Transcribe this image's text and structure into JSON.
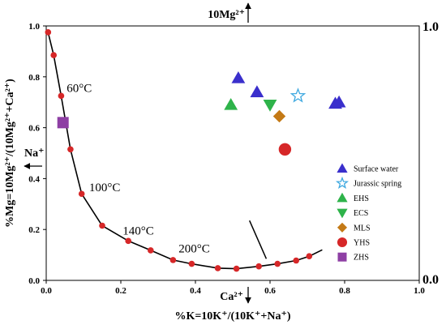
{
  "chart_data": {
    "type": "scatter",
    "title": "",
    "xlabel": "%K=10K⁺/(10K⁺+Na⁺)",
    "ylabel": "%Mg=10Mg²⁺/(10Mg²⁺+Ca²⁺)",
    "xlim": [
      0,
      1.0
    ],
    "ylim": [
      0,
      1.0
    ],
    "x_ticks": [
      "0.0",
      "0.2",
      "0.4",
      "0.6",
      "0.8",
      "1.0"
    ],
    "y_ticks": [
      "0.0",
      "0.2",
      "0.4",
      "0.6",
      "0.8",
      "1.0"
    ],
    "right_ticks": [
      "1.0",
      "0.0"
    ],
    "corner_labels": {
      "top": "10Mg²⁺",
      "left": "Na⁺",
      "bottom": "Ca²⁺"
    },
    "equilibrium_curve": {
      "color": "#000000",
      "marker_color": "#d62728",
      "points": [
        [
          0.005,
          0.975
        ],
        [
          0.02,
          0.885
        ],
        [
          0.04,
          0.725
        ],
        [
          0.065,
          0.515
        ],
        [
          0.095,
          0.34
        ],
        [
          0.15,
          0.215
        ],
        [
          0.22,
          0.155
        ],
        [
          0.28,
          0.118
        ],
        [
          0.34,
          0.08
        ],
        [
          0.39,
          0.065
        ],
        [
          0.46,
          0.048
        ],
        [
          0.51,
          0.046
        ],
        [
          0.57,
          0.055
        ],
        [
          0.62,
          0.065
        ],
        [
          0.67,
          0.078
        ],
        [
          0.705,
          0.095
        ],
        [
          0.74,
          0.12
        ]
      ],
      "marked_points": [
        [
          0.005,
          0.975
        ],
        [
          0.02,
          0.885
        ],
        [
          0.04,
          0.725
        ],
        [
          0.065,
          0.515
        ],
        [
          0.095,
          0.34
        ],
        [
          0.15,
          0.215
        ],
        [
          0.22,
          0.155
        ],
        [
          0.28,
          0.118
        ],
        [
          0.34,
          0.08
        ],
        [
          0.39,
          0.065
        ],
        [
          0.46,
          0.048
        ],
        [
          0.51,
          0.046
        ],
        [
          0.57,
          0.055
        ],
        [
          0.62,
          0.065
        ],
        [
          0.67,
          0.078
        ],
        [
          0.705,
          0.095
        ]
      ]
    },
    "tangent_line": [
      [
        0.59,
        0.085
      ],
      [
        0.545,
        0.235
      ]
    ],
    "temperature_labels": [
      {
        "text": "60°C",
        "x": 0.055,
        "y": 0.74
      },
      {
        "text": "100°C",
        "x": 0.115,
        "y": 0.35
      },
      {
        "text": "140°C",
        "x": 0.205,
        "y": 0.18
      },
      {
        "text": "200°C",
        "x": 0.355,
        "y": 0.11
      }
    ],
    "series": [
      {
        "name": "Surface water",
        "marker": "triangle-up",
        "color": "#3a2fcc",
        "points": [
          [
            0.515,
            0.795
          ],
          [
            0.565,
            0.74
          ],
          [
            0.775,
            0.695
          ],
          [
            0.785,
            0.7
          ]
        ]
      },
      {
        "name": "Jurassic spring",
        "marker": "star-open",
        "color": "#3fa9e0",
        "points": [
          [
            0.675,
            0.725
          ]
        ]
      },
      {
        "name": "EHS",
        "marker": "triangle-up",
        "color": "#2eb34a",
        "points": [
          [
            0.495,
            0.69
          ]
        ]
      },
      {
        "name": "ECS",
        "marker": "triangle-down",
        "color": "#2eb34a",
        "points": [
          [
            0.6,
            0.69
          ]
        ]
      },
      {
        "name": "MLS",
        "marker": "diamond",
        "color": "#c47a16",
        "points": [
          [
            0.625,
            0.645
          ]
        ]
      },
      {
        "name": "YHS",
        "marker": "circle",
        "color": "#d62728",
        "points": [
          [
            0.64,
            0.515
          ]
        ]
      },
      {
        "name": "ZHS",
        "marker": "square",
        "color": "#8e3fa4",
        "points": [
          [
            0.045,
            0.62
          ]
        ]
      }
    ],
    "legend_position": "right"
  }
}
